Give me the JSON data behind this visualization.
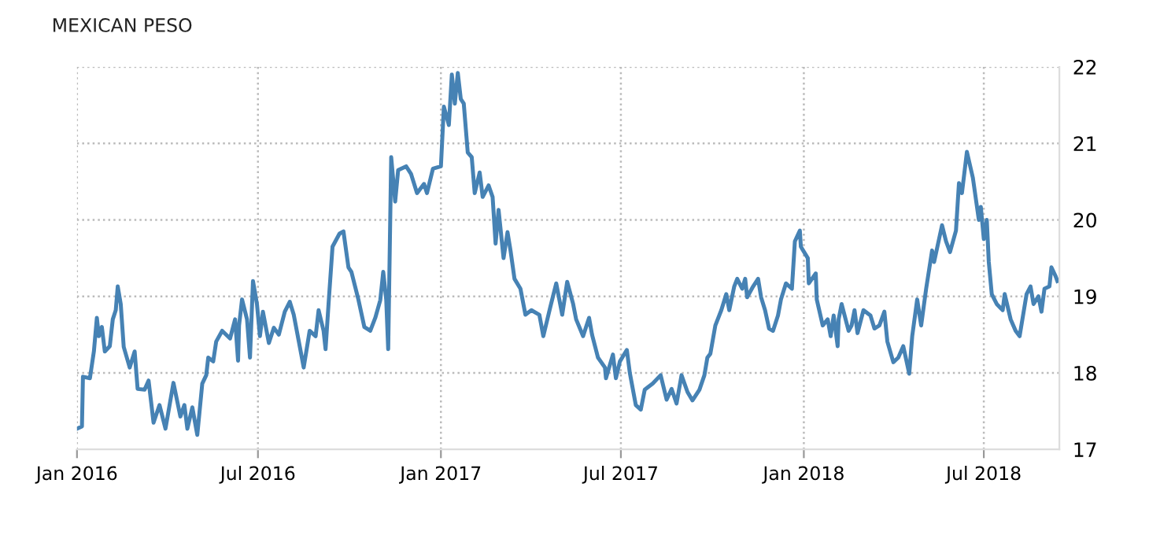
{
  "chart_data": {
    "type": "line",
    "title": "MEXICAN PESO",
    "x": [
      "2016-01-01",
      "2016-01-06",
      "2016-01-07",
      "2016-01-14",
      "2016-01-18",
      "2016-01-21",
      "2016-01-23",
      "2016-01-26",
      "2016-01-29",
      "2016-02-03",
      "2016-02-06",
      "2016-02-09",
      "2016-02-11",
      "2016-02-14",
      "2016-02-17",
      "2016-02-23",
      "2016-02-28",
      "2016-03-02",
      "2016-03-09",
      "2016-03-13",
      "2016-03-18",
      "2016-03-24",
      "2016-03-30",
      "2016-04-07",
      "2016-04-14",
      "2016-04-18",
      "2016-04-21",
      "2016-04-26",
      "2016-05-01",
      "2016-05-06",
      "2016-05-10",
      "2016-05-12",
      "2016-05-17",
      "2016-05-20",
      "2016-05-26",
      "2016-06-03",
      "2016-06-08",
      "2016-06-11",
      "2016-06-12",
      "2016-06-15",
      "2016-06-20",
      "2016-06-23",
      "2016-06-26",
      "2016-06-30",
      "2016-07-03",
      "2016-07-06",
      "2016-07-12",
      "2016-07-17",
      "2016-07-22",
      "2016-07-28",
      "2016-08-02",
      "2016-08-06",
      "2016-08-13",
      "2016-08-16",
      "2016-08-22",
      "2016-08-28",
      "2016-08-31",
      "2016-09-05",
      "2016-09-07",
      "2016-09-10",
      "2016-09-14",
      "2016-09-21",
      "2016-09-25",
      "2016-09-30",
      "2016-10-03",
      "2016-10-10",
      "2016-10-16",
      "2016-10-22",
      "2016-10-27",
      "2016-11-01",
      "2016-11-04",
      "2016-11-07",
      "2016-11-09",
      "2016-11-12",
      "2016-11-16",
      "2016-11-19",
      "2016-11-27",
      "2016-12-02",
      "2016-12-08",
      "2016-12-15",
      "2016-12-18",
      "2016-12-24",
      "2017-01-01",
      "2017-01-04",
      "2017-01-09",
      "2017-01-12",
      "2017-01-15",
      "2017-01-18",
      "2017-01-21",
      "2017-01-24",
      "2017-01-28",
      "2017-02-01",
      "2017-02-04",
      "2017-02-09",
      "2017-02-12",
      "2017-02-18",
      "2017-02-22",
      "2017-02-25",
      "2017-02-28",
      "2017-03-05",
      "2017-03-09",
      "2017-03-12",
      "2017-03-16",
      "2017-03-22",
      "2017-03-27",
      "2017-04-02",
      "2017-04-10",
      "2017-04-14",
      "2017-04-21",
      "2017-04-27",
      "2017-05-03",
      "2017-05-08",
      "2017-05-14",
      "2017-05-17",
      "2017-05-24",
      "2017-05-30",
      "2017-06-02",
      "2017-06-08",
      "2017-06-15",
      "2017-06-16",
      "2017-06-23",
      "2017-06-26",
      "2017-06-30",
      "2017-07-07",
      "2017-07-10",
      "2017-07-16",
      "2017-07-21",
      "2017-07-25",
      "2017-08-02",
      "2017-08-10",
      "2017-08-16",
      "2017-08-21",
      "2017-08-26",
      "2017-08-31",
      "2017-09-06",
      "2017-09-11",
      "2017-09-18",
      "2017-09-23",
      "2017-09-26",
      "2017-09-29",
      "2017-10-04",
      "2017-10-10",
      "2017-10-15",
      "2017-10-18",
      "2017-10-23",
      "2017-10-26",
      "2017-10-31",
      "2017-11-03",
      "2017-11-05",
      "2017-11-11",
      "2017-11-16",
      "2017-11-19",
      "2017-11-23",
      "2017-11-27",
      "2017-12-01",
      "2017-12-06",
      "2017-12-09",
      "2017-12-14",
      "2017-12-20",
      "2017-12-23",
      "2017-12-28",
      "2017-12-29",
      "2018-01-05",
      "2018-01-06",
      "2018-01-13",
      "2018-01-14",
      "2018-01-20",
      "2018-01-25",
      "2018-01-28",
      "2018-01-31",
      "2018-02-04",
      "2018-02-05",
      "2018-02-08",
      "2018-02-15",
      "2018-02-18",
      "2018-02-21",
      "2018-02-24",
      "2018-03-02",
      "2018-03-09",
      "2018-03-13",
      "2018-03-18",
      "2018-03-23",
      "2018-03-26",
      "2018-04-01",
      "2018-04-06",
      "2018-04-11",
      "2018-04-17",
      "2018-04-20",
      "2018-04-25",
      "2018-04-29",
      "2018-05-04",
      "2018-05-10",
      "2018-05-12",
      "2018-05-20",
      "2018-05-24",
      "2018-05-28",
      "2018-06-03",
      "2018-06-06",
      "2018-06-09",
      "2018-06-14",
      "2018-06-20",
      "2018-06-26",
      "2018-06-28",
      "2018-07-01",
      "2018-07-04",
      "2018-07-06",
      "2018-07-09",
      "2018-07-14",
      "2018-07-20",
      "2018-07-22",
      "2018-07-28",
      "2018-08-02",
      "2018-08-06",
      "2018-08-13",
      "2018-08-17",
      "2018-08-20",
      "2018-08-25",
      "2018-08-28",
      "2018-08-31",
      "2018-09-05",
      "2018-09-07",
      "2018-09-11",
      "2018-09-13"
    ],
    "series": [
      {
        "color": "#4682b4",
        "values": [
          17.27,
          17.3,
          17.95,
          17.93,
          18.28,
          18.72,
          18.48,
          18.6,
          18.28,
          18.35,
          18.7,
          18.82,
          19.13,
          18.9,
          18.34,
          18.07,
          18.28,
          17.79,
          17.78,
          17.9,
          17.35,
          17.58,
          17.27,
          17.87,
          17.43,
          17.58,
          17.27,
          17.55,
          17.19,
          17.86,
          17.97,
          18.2,
          18.15,
          18.41,
          18.55,
          18.45,
          18.7,
          18.16,
          18.62,
          18.96,
          18.7,
          18.2,
          19.2,
          18.9,
          18.48,
          18.8,
          18.39,
          18.59,
          18.5,
          18.8,
          18.93,
          18.76,
          18.28,
          18.07,
          18.55,
          18.48,
          18.82,
          18.55,
          18.31,
          18.9,
          19.65,
          19.82,
          19.85,
          19.38,
          19.32,
          18.96,
          18.6,
          18.55,
          18.72,
          18.95,
          19.32,
          18.96,
          18.31,
          20.82,
          20.24,
          20.65,
          20.7,
          20.6,
          20.35,
          20.47,
          20.35,
          20.67,
          20.7,
          21.48,
          21.24,
          21.9,
          21.52,
          21.92,
          21.58,
          21.52,
          20.88,
          20.82,
          20.35,
          20.62,
          20.3,
          20.45,
          20.3,
          19.69,
          20.13,
          19.5,
          19.84,
          19.6,
          19.23,
          19.1,
          18.76,
          18.82,
          18.76,
          18.48,
          18.86,
          19.17,
          18.76,
          19.19,
          18.9,
          18.7,
          18.48,
          18.72,
          18.5,
          18.2,
          18.07,
          17.93,
          18.24,
          17.93,
          18.15,
          18.3,
          18.0,
          17.58,
          17.52,
          17.78,
          17.86,
          17.97,
          17.65,
          17.79,
          17.6,
          17.97,
          17.75,
          17.64,
          17.78,
          17.97,
          18.2,
          18.25,
          18.62,
          18.82,
          19.03,
          18.82,
          19.13,
          19.23,
          19.1,
          19.23,
          18.99,
          19.13,
          19.23,
          18.99,
          18.82,
          18.58,
          18.55,
          18.75,
          18.96,
          19.17,
          19.1,
          19.72,
          19.86,
          19.65,
          19.5,
          19.17,
          19.3,
          18.96,
          18.62,
          18.7,
          18.48,
          18.75,
          18.35,
          18.7,
          18.9,
          18.55,
          18.62,
          18.82,
          18.52,
          18.82,
          18.75,
          18.58,
          18.62,
          18.8,
          18.41,
          18.14,
          18.2,
          18.35,
          17.99,
          18.48,
          18.96,
          18.62,
          19.1,
          19.6,
          19.45,
          19.93,
          19.72,
          19.58,
          19.86,
          20.48,
          20.35,
          20.89,
          20.55,
          20.0,
          20.17,
          19.75,
          20.0,
          19.45,
          19.03,
          18.9,
          18.82,
          19.03,
          18.7,
          18.55,
          18.48,
          19.03,
          19.13,
          18.9,
          19.0,
          18.8,
          19.1,
          19.13,
          19.38,
          19.27,
          19.2
        ]
      }
    ],
    "xlim": [
      "2016-01-01",
      "2018-09-15"
    ],
    "xticks": [
      {
        "value": "2016-01-01",
        "label": "Jan 2016"
      },
      {
        "value": "2016-07-01",
        "label": "Jul 2016"
      },
      {
        "value": "2017-01-01",
        "label": "Jan 2017"
      },
      {
        "value": "2017-07-01",
        "label": "Jul 2017"
      },
      {
        "value": "2018-01-01",
        "label": "Jan 2018"
      },
      {
        "value": "2018-07-01",
        "label": "Jul 2018"
      }
    ],
    "ylim": [
      17,
      22
    ],
    "yticks": [
      17,
      18,
      19,
      20,
      21,
      22
    ],
    "grid": true,
    "line_style": "solid",
    "marker": "none"
  }
}
